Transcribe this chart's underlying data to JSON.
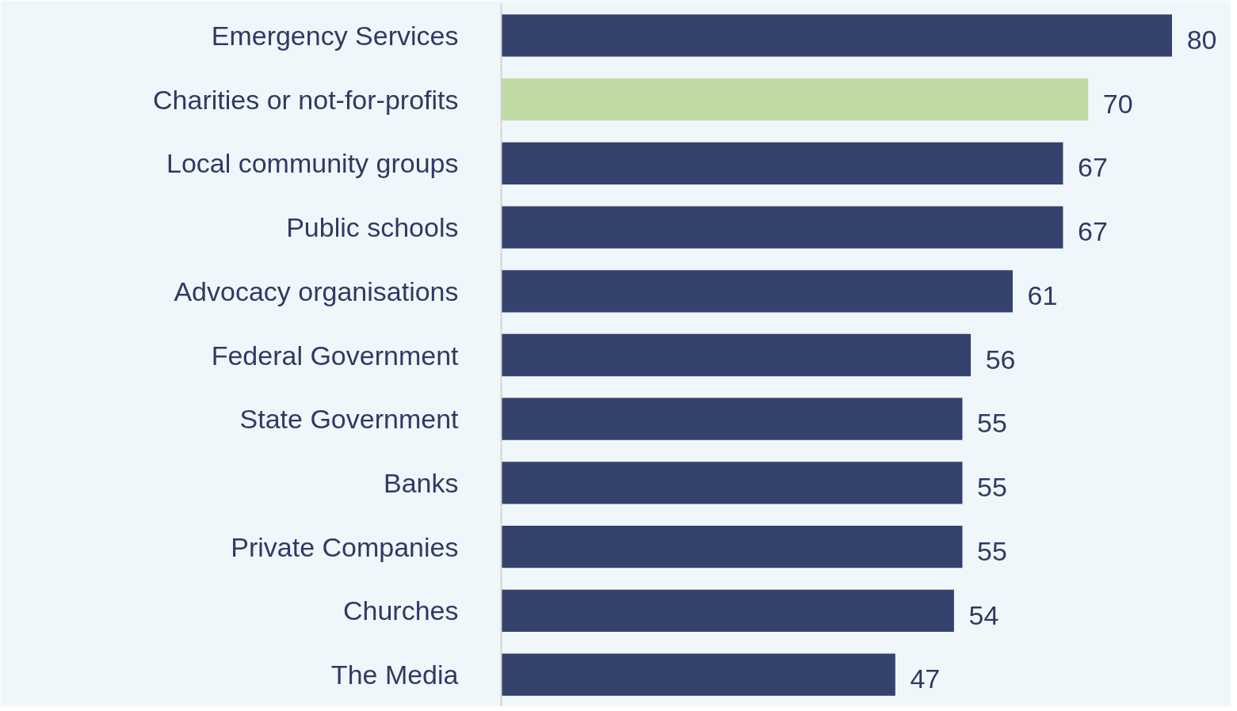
{
  "chart_data": {
    "type": "bar",
    "orientation": "horizontal",
    "categories": [
      "Emergency Services",
      "Charities or not-for-profits",
      "Local community groups",
      "Public schools",
      "Advocacy organisations",
      "Federal Government",
      "State Government",
      "Banks",
      "Private Companies",
      "Churches",
      "The Media"
    ],
    "values": [
      80,
      70,
      67,
      67,
      61,
      56,
      55,
      55,
      55,
      54,
      47
    ],
    "colors": [
      "#35426e",
      "#c1d9a3",
      "#35426e",
      "#35426e",
      "#35426e",
      "#35426e",
      "#35426e",
      "#35426e",
      "#35426e",
      "#35426e",
      "#35426e"
    ],
    "data_labels": true,
    "grid": false,
    "tick_labels": "y"
  }
}
